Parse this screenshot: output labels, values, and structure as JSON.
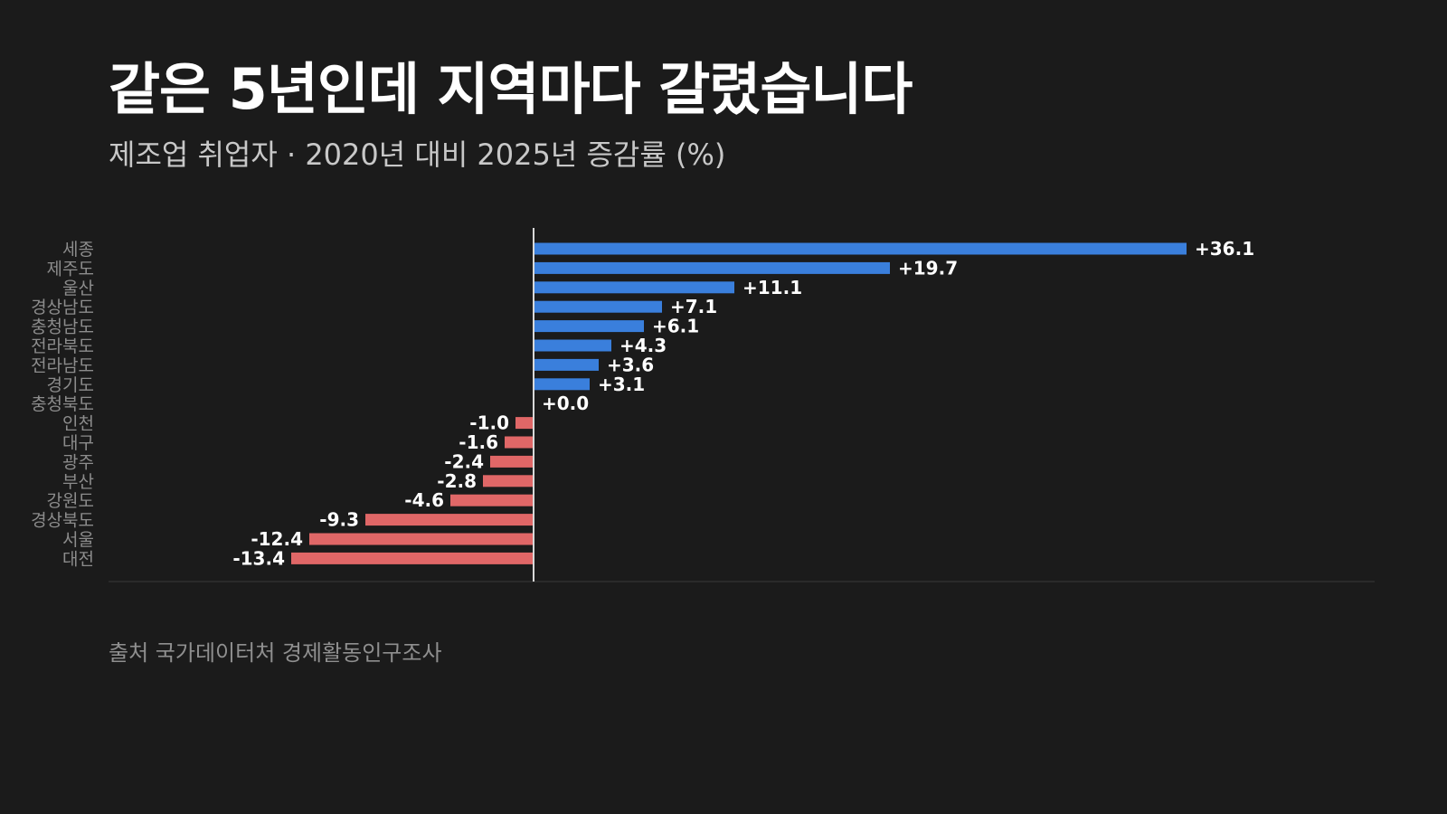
{
  "title": "같은 5년인데 지역마다 갈렸습니다",
  "subtitle": "제조업 취업자 · 2020년 대비 2025년 증감률 (%)",
  "source": "출처 국가데이터처 경제활동인구조사",
  "colors": {
    "background": "#1b1b1b",
    "positive": "#3a7fdc",
    "negative": "#e06767",
    "value_label": "#ffffff",
    "category_label": "#8c8c8c",
    "zero_line": "#d8d8d8",
    "baseline": "#3a3a3a"
  },
  "chart_data": {
    "type": "bar",
    "orientation": "horizontal",
    "categories": [
      "세종",
      "제주도",
      "울산",
      "경상남도",
      "충청남도",
      "전라북도",
      "전라남도",
      "경기도",
      "충청북도",
      "인천",
      "대구",
      "광주",
      "부산",
      "강원도",
      "경상북도",
      "서울",
      "대전"
    ],
    "values": [
      36.1,
      19.7,
      11.1,
      7.1,
      6.1,
      4.3,
      3.6,
      3.1,
      0.0,
      -1.0,
      -1.6,
      -2.4,
      -2.8,
      -4.6,
      -9.3,
      -12.4,
      -13.4
    ],
    "value_labels": [
      "+36.1",
      "+19.7",
      "+11.1",
      "+7.1",
      "+6.1",
      "+4.3",
      "+3.6",
      "+3.1",
      "+0.0",
      "-1.0",
      "-1.6",
      "-2.4",
      "-2.8",
      "-4.6",
      "-9.3",
      "-12.4",
      "-13.4"
    ],
    "xlim": [
      -23.5,
      46.5
    ],
    "grid": false,
    "legend": "none"
  }
}
